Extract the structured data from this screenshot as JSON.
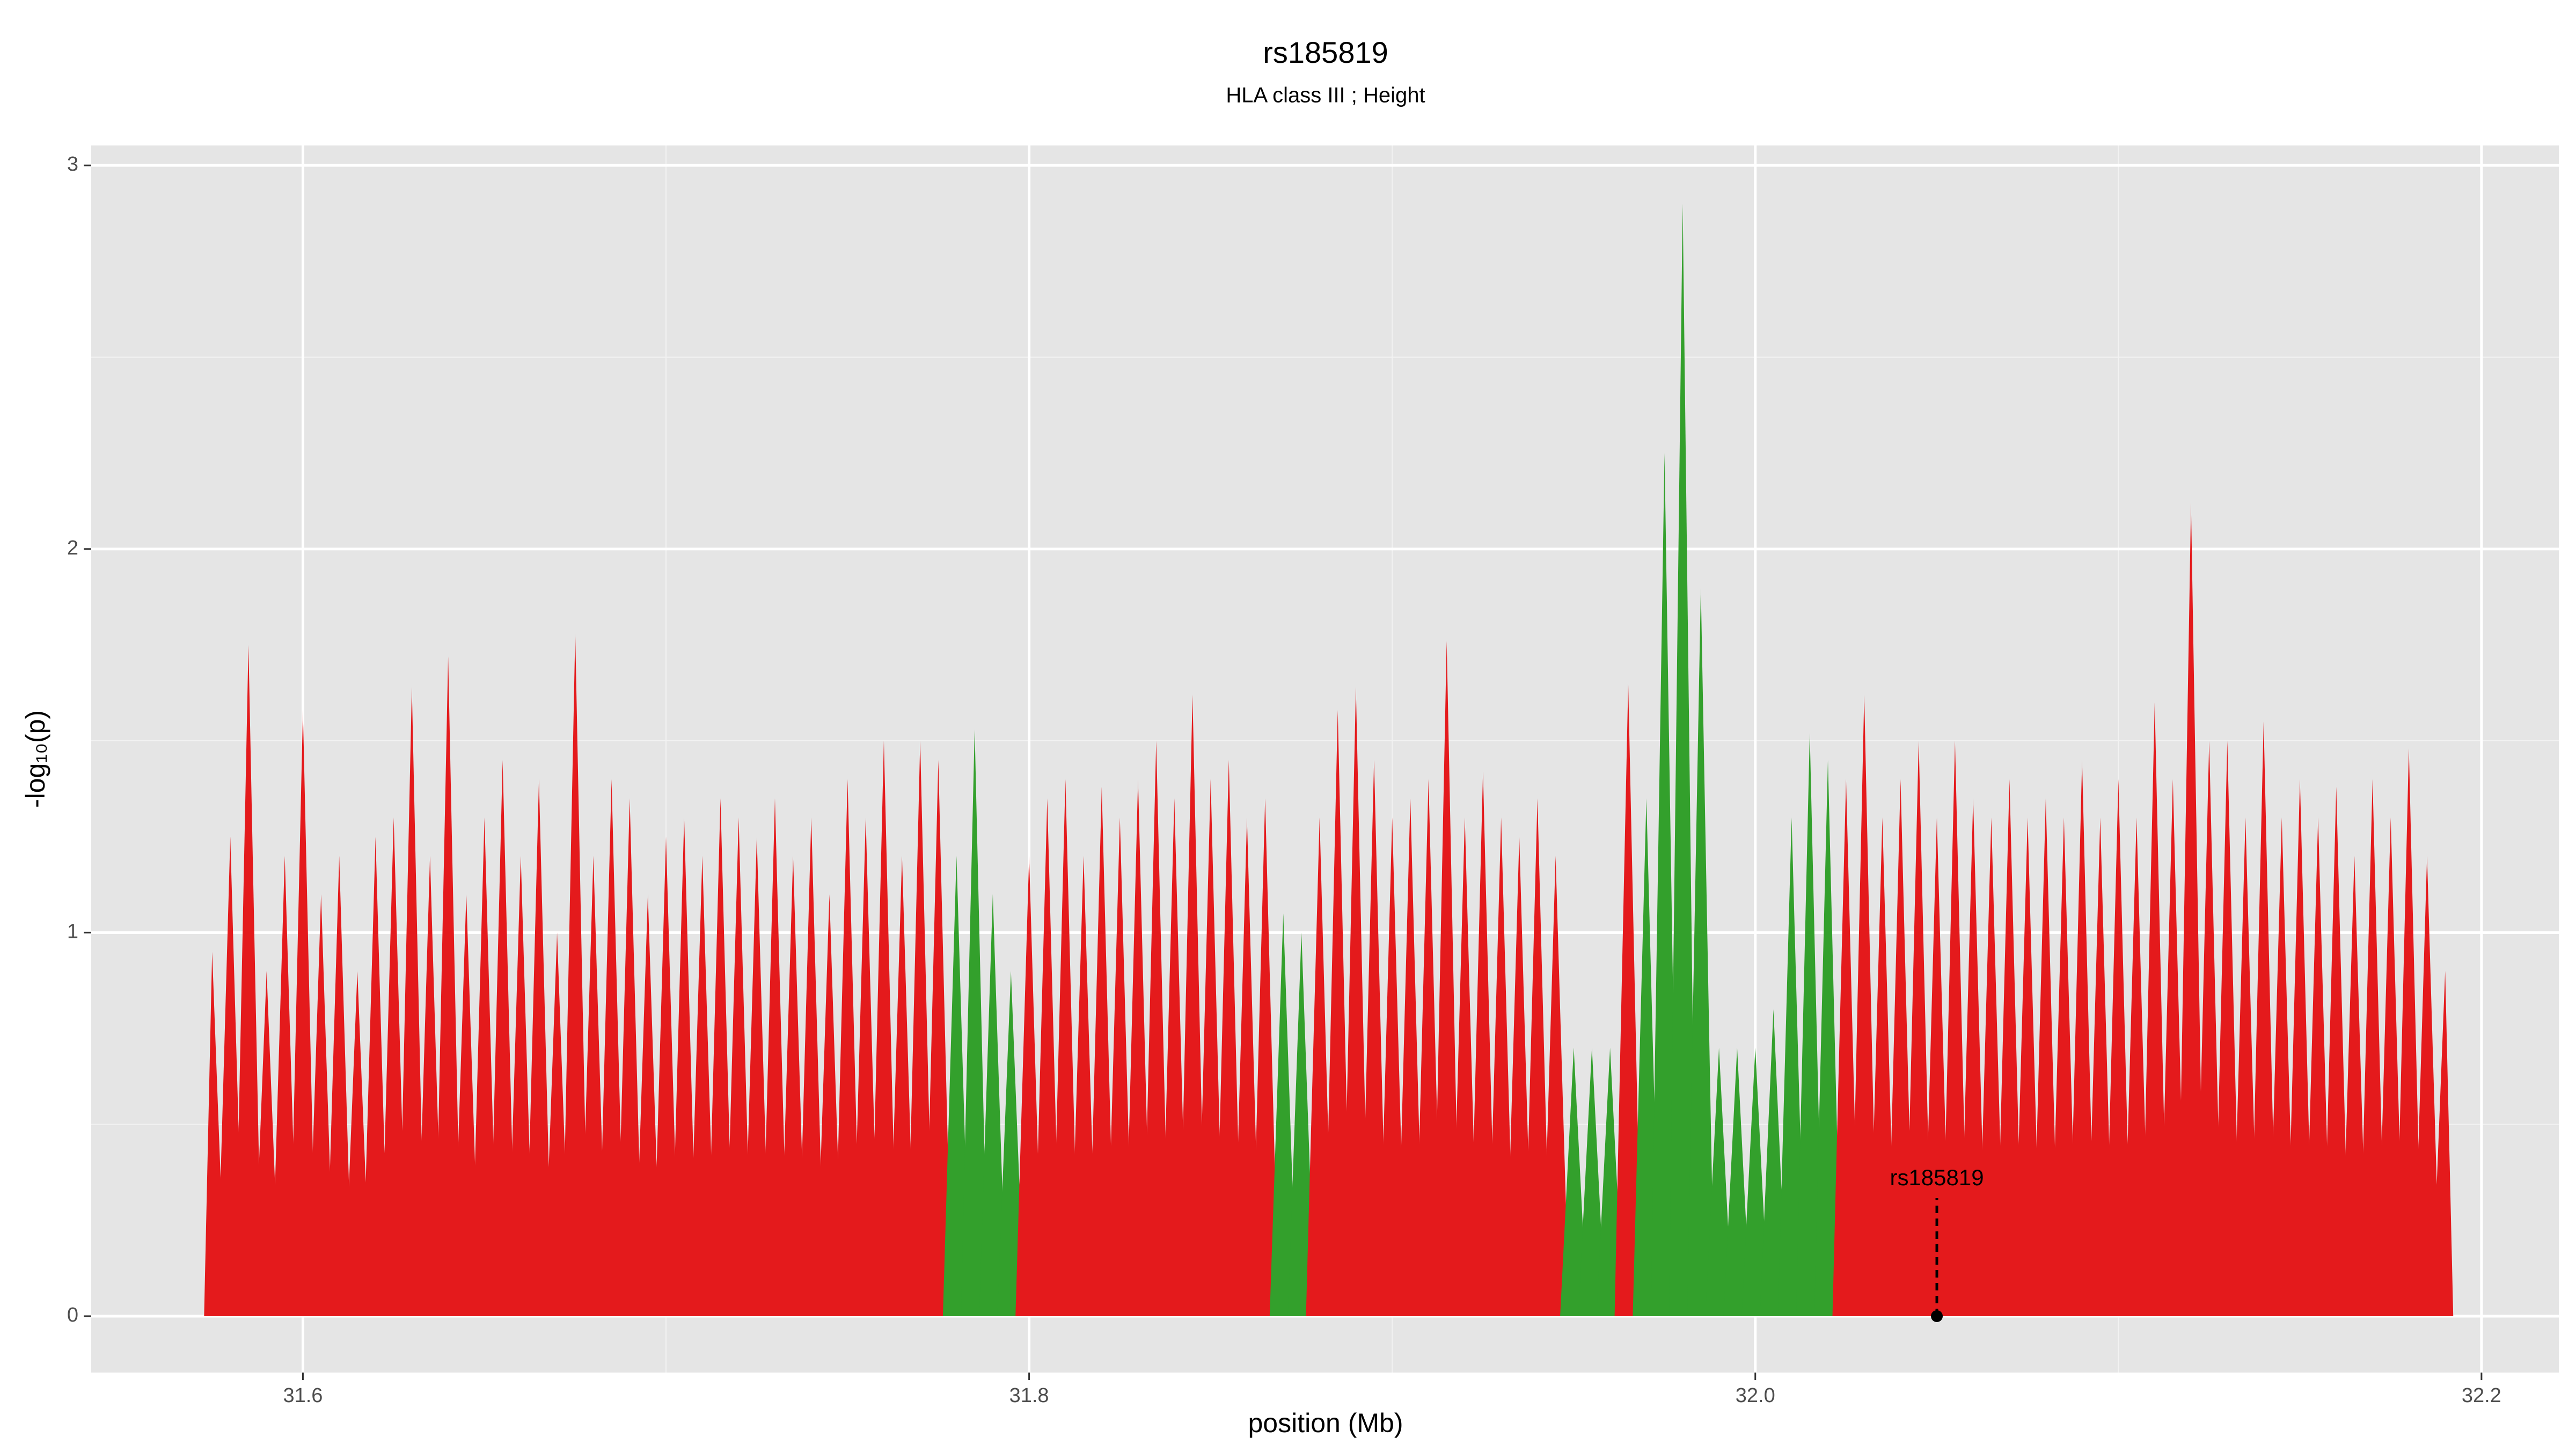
{
  "chart_data": {
    "type": "spike-area",
    "title": "rs185819",
    "subtitle": "HLA class III ; Height",
    "xlabel": "position (Mb)",
    "ylabel": "-log₁₀(p)",
    "xlim": [
      31.5417,
      32.2213
    ],
    "ylim": [
      -0.147,
      3.052
    ],
    "xticks": [
      31.6,
      31.8,
      {
        "value": 32.0,
        "label": "32.0"
      },
      32.2
    ],
    "yticks": [
      0,
      1,
      2,
      3
    ],
    "minor_xticks": [
      31.7,
      31.9,
      32.1
    ],
    "minor_yticks": [
      0.5,
      1.5,
      2.5
    ],
    "grid": true,
    "color": "#e41a1c",
    "color_segments": [
      {
        "start": 31.78,
        "end": 31.795,
        "color": "#33a02c"
      },
      {
        "start": 31.87,
        "end": 31.875,
        "color": "#33a02c"
      },
      {
        "start": 31.95,
        "end": 31.96,
        "color": "#33a02c"
      },
      {
        "start": 31.97,
        "end": 32.02,
        "color": "#33a02c"
      }
    ],
    "x": [
      31.575,
      31.58,
      31.585,
      31.59,
      31.595,
      31.6,
      31.605,
      31.61,
      31.615,
      31.62,
      31.625,
      31.63,
      31.635,
      31.64,
      31.645,
      31.65,
      31.655,
      31.66,
      31.665,
      31.67,
      31.675,
      31.68,
      31.685,
      31.69,
      31.695,
      31.7,
      31.705,
      31.71,
      31.715,
      31.72,
      31.725,
      31.73,
      31.735,
      31.74,
      31.745,
      31.75,
      31.755,
      31.76,
      31.765,
      31.77,
      31.775,
      31.78,
      31.785,
      31.79,
      31.795,
      31.8,
      31.805,
      31.81,
      31.815,
      31.82,
      31.825,
      31.83,
      31.835,
      31.84,
      31.845,
      31.85,
      31.855,
      31.86,
      31.865,
      31.87,
      31.875,
      31.88,
      31.885,
      31.89,
      31.895,
      31.9,
      31.905,
      31.91,
      31.915,
      31.92,
      31.925,
      31.93,
      31.935,
      31.94,
      31.945,
      31.95,
      31.955,
      31.96,
      31.965,
      31.97,
      31.975,
      31.98,
      31.985,
      31.99,
      31.995,
      32.0,
      32.005,
      32.01,
      32.015,
      32.02,
      32.025,
      32.03,
      32.035,
      32.04,
      32.045,
      32.05,
      32.055,
      32.06,
      32.065,
      32.07,
      32.075,
      32.08,
      32.085,
      32.09,
      32.095,
      32.1,
      32.105,
      32.11,
      32.115,
      32.12,
      32.125,
      32.13,
      32.135,
      32.14,
      32.145,
      32.15,
      32.155,
      32.16,
      32.165,
      32.17,
      32.175,
      32.18,
      32.185,
      32.19
    ],
    "values": [
      0.95,
      1.25,
      1.75,
      0.9,
      1.2,
      1.58,
      1.1,
      1.2,
      0.9,
      1.25,
      1.3,
      1.64,
      1.2,
      1.72,
      1.1,
      1.3,
      1.45,
      1.2,
      1.4,
      1.0,
      1.78,
      1.2,
      1.4,
      1.35,
      1.1,
      1.25,
      1.3,
      1.2,
      1.35,
      1.3,
      1.25,
      1.35,
      1.2,
      1.3,
      1.1,
      1.4,
      1.3,
      1.5,
      1.2,
      1.5,
      1.45,
      1.2,
      1.53,
      1.1,
      0.9,
      1.2,
      1.35,
      1.4,
      1.2,
      1.38,
      1.3,
      1.4,
      1.5,
      1.35,
      1.62,
      1.4,
      1.45,
      1.3,
      1.35,
      1.05,
      1.0,
      1.3,
      1.58,
      1.64,
      1.45,
      1.3,
      1.35,
      1.4,
      1.76,
      1.3,
      1.42,
      1.3,
      1.25,
      1.35,
      1.2,
      0.7,
      0.7,
      0.7,
      1.65,
      1.35,
      2.25,
      2.9,
      1.9,
      0.7,
      0.7,
      0.7,
      0.8,
      1.3,
      1.52,
      1.45,
      1.4,
      1.62,
      1.3,
      1.4,
      1.5,
      1.3,
      1.5,
      1.35,
      1.3,
      1.4,
      1.3,
      1.35,
      1.3,
      1.45,
      1.3,
      1.4,
      1.3,
      1.6,
      1.4,
      2.12,
      1.5,
      1.5,
      1.3,
      1.55,
      1.3,
      1.4,
      1.3,
      1.38,
      1.2,
      1.4,
      1.3,
      1.48,
      1.2,
      0.9
    ],
    "annotation": {
      "text": "rs185819",
      "x": 32.05,
      "y": 0
    }
  }
}
